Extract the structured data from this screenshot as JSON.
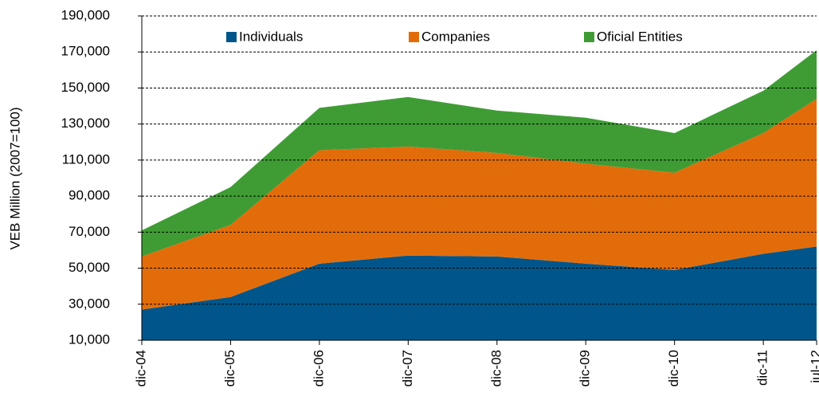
{
  "chart_data": {
    "type": "stacked_area",
    "y_label": "VEB Million (2007=100)",
    "categories": [
      "dic-04",
      "dic-05",
      "dic-06",
      "dic-07",
      "dic-08",
      "dic-09",
      "dic-10",
      "dic-11",
      "jul-12"
    ],
    "series": [
      {
        "name": "Individuals",
        "color": "#00568a",
        "values": [
          27000,
          34000,
          52500,
          57000,
          56500,
          52500,
          49000,
          58000,
          62000
        ]
      },
      {
        "name": "Companies",
        "color": "#e36c0a",
        "values": [
          29500,
          40000,
          63000,
          60500,
          57500,
          55500,
          54000,
          67000,
          82000
        ]
      },
      {
        "name": "Oficial Entities",
        "color": "#3f9c35",
        "values": [
          14500,
          21000,
          23500,
          27500,
          23500,
          25500,
          22000,
          23500,
          27000
        ]
      }
    ],
    "ylim": [
      10000,
      190000
    ],
    "yticks": [
      {
        "value": 10000,
        "label": "10,000"
      },
      {
        "value": 30000,
        "label": "30,000"
      },
      {
        "value": 50000,
        "label": "50,000"
      },
      {
        "value": 70000,
        "label": "70,000"
      },
      {
        "value": 90000,
        "label": "90,000"
      },
      {
        "value": 110000,
        "label": "110,000"
      },
      {
        "value": 130000,
        "label": "130,000"
      },
      {
        "value": 150000,
        "label": "150,000"
      },
      {
        "value": 170000,
        "label": "170,000"
      },
      {
        "value": 190000,
        "label": "190,000"
      }
    ],
    "grid": true,
    "legend": "top"
  }
}
